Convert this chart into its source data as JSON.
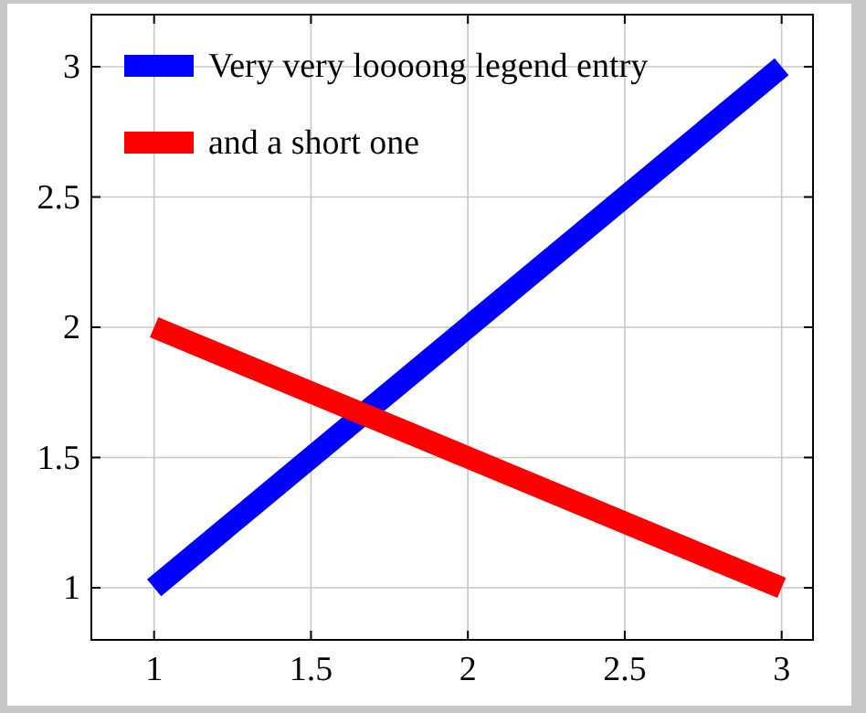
{
  "chart_data": {
    "type": "line",
    "x": [
      1,
      3
    ],
    "series": [
      {
        "name": "Very very loooong legend entry",
        "color": "#0000ff",
        "values": [
          1,
          3
        ]
      },
      {
        "name": "and a short one",
        "color": "#ff0000",
        "values": [
          2,
          1
        ]
      }
    ],
    "xlim": [
      0.8,
      3.1
    ],
    "ylim": [
      0.8,
      3.2
    ],
    "xticks": [
      1,
      1.5,
      2,
      2.5,
      3
    ],
    "yticks": [
      1,
      1.5,
      2,
      2.5,
      3
    ],
    "grid": true,
    "legend": "top left",
    "marker": "none",
    "line_style": "solid"
  }
}
